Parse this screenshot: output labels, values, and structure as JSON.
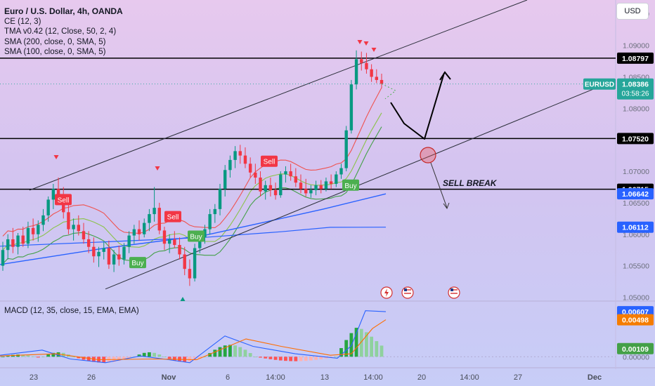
{
  "legend": {
    "title": "Euro / U.S. Dollar, 4h, OANDA",
    "lines": [
      "CE (12, 3)",
      "TMA v0.42 (12, Close, 50, 2, 4)",
      "SMA (200, close, 0, SMA, 5)",
      "SMA (100, close, 0, SMA, 5)"
    ]
  },
  "currency_button": "USD",
  "macd_legend": "MACD (12, 35, close, 15, EMA, EMA)",
  "chart_data": [
    {
      "type": "candlestick",
      "title": "Euro / U.S. Dollar, 4h, OANDA",
      "symbol": "EURUSD",
      "ylim": [
        1.0495,
        1.0972
      ],
      "y_ticks": [
        "1.09500",
        "1.09000",
        "1.08500",
        "1.08000",
        "1.07500",
        "1.07000",
        "1.06500",
        "1.06000",
        "1.05500",
        "1.05000"
      ],
      "x_tick_labels": [
        "23",
        "26",
        "Nov",
        "6",
        "14:00",
        "13",
        "14:00",
        "20",
        "14:00",
        "27",
        "Dec"
      ],
      "horizontal_levels": [
        {
          "label": "1.08797",
          "value": 1.08797
        },
        {
          "label": "1.07520",
          "value": 1.0752
        },
        {
          "label": "1.06715",
          "value": 1.06715
        }
      ],
      "price_tags": [
        {
          "label": "1.08386",
          "sub": "03:58:26",
          "value": 1.08386,
          "color": "#26a69a",
          "name": "EURUSD"
        },
        {
          "label": "1.06642",
          "value": 1.06642,
          "color": "#2962ff"
        },
        {
          "label": "1.06112",
          "value": 1.06112,
          "color": "#2962ff"
        }
      ],
      "signals": [
        {
          "label": "Sell",
          "date": "Oct 23",
          "price": 1.0655
        },
        {
          "label": "Sell",
          "date": "Oct 31",
          "price": 1.0628
        },
        {
          "label": "Buy",
          "date": "Oct 27",
          "price": 1.0555
        },
        {
          "label": "Buy",
          "date": "Nov 1",
          "price": 1.0597
        },
        {
          "label": "Sell",
          "date": "Nov 7",
          "price": 1.0716
        },
        {
          "label": "Buy",
          "date": "Nov 14",
          "price": 1.0678
        }
      ],
      "annotations": [
        {
          "text": "SELL BREAK"
        }
      ],
      "candles": [
        [
          1.055,
          1.0588,
          1.0542,
          1.0575
        ],
        [
          1.0575,
          1.06,
          1.056,
          1.0592
        ],
        [
          1.0592,
          1.061,
          1.057,
          1.058
        ],
        [
          1.058,
          1.0602,
          1.0568,
          1.0598
        ],
        [
          1.0598,
          1.0612,
          1.058,
          1.0585
        ],
        [
          1.0585,
          1.062,
          1.0578,
          1.061
        ],
        [
          1.061,
          1.0625,
          1.059,
          1.06
        ],
        [
          1.06,
          1.0622,
          1.0588,
          1.0615
        ],
        [
          1.0615,
          1.064,
          1.0605,
          1.063
        ],
        [
          1.063,
          1.066,
          1.062,
          1.0655
        ],
        [
          1.0655,
          1.068,
          1.064,
          1.0672
        ],
        [
          1.0672,
          1.069,
          1.065,
          1.066
        ],
        [
          1.066,
          1.0675,
          1.0625,
          1.0635
        ],
        [
          1.0635,
          1.0648,
          1.06,
          1.0608
        ],
        [
          1.0608,
          1.0625,
          1.059,
          1.0615
        ],
        [
          1.0615,
          1.063,
          1.0598,
          1.0605
        ],
        [
          1.0605,
          1.0618,
          1.0585,
          1.0592
        ],
        [
          1.0592,
          1.0605,
          1.057,
          1.058
        ],
        [
          1.058,
          1.0595,
          1.0555,
          1.0565
        ],
        [
          1.0565,
          1.058,
          1.0548,
          1.0572
        ],
        [
          1.0572,
          1.0588,
          1.056,
          1.0578
        ],
        [
          1.0578,
          1.059,
          1.0545,
          1.0552
        ],
        [
          1.0552,
          1.0575,
          1.054,
          1.0568
        ],
        [
          1.0568,
          1.0582,
          1.055,
          1.056
        ],
        [
          1.056,
          1.0586,
          1.0552,
          1.058
        ],
        [
          1.058,
          1.0605,
          1.057,
          1.0598
        ],
        [
          1.0598,
          1.0615,
          1.0585,
          1.0608
        ],
        [
          1.0608,
          1.0622,
          1.059,
          1.06
        ],
        [
          1.06,
          1.0625,
          1.0595,
          1.0618
        ],
        [
          1.0618,
          1.064,
          1.0605,
          1.0632
        ],
        [
          1.0632,
          1.0675,
          1.062,
          1.0642
        ],
        [
          1.0642,
          1.065,
          1.06,
          1.0606
        ],
        [
          1.0606,
          1.0612,
          1.0575,
          1.0585
        ],
        [
          1.0585,
          1.06,
          1.057,
          1.0592
        ],
        [
          1.0592,
          1.0605,
          1.0578,
          1.0583
        ],
        [
          1.0583,
          1.0595,
          1.056,
          1.0568
        ],
        [
          1.0568,
          1.058,
          1.0535,
          1.0545
        ],
        [
          1.0545,
          1.056,
          1.0518,
          1.053
        ],
        [
          1.053,
          1.0585,
          1.0525,
          1.0578
        ],
        [
          1.0578,
          1.06,
          1.057,
          1.0595
        ],
        [
          1.0595,
          1.0615,
          1.0585,
          1.0608
        ],
        [
          1.0608,
          1.064,
          1.06,
          1.0632
        ],
        [
          1.0632,
          1.0648,
          1.0618,
          1.064
        ],
        [
          1.064,
          1.068,
          1.063,
          1.0672
        ],
        [
          1.0672,
          1.071,
          1.066,
          1.0702
        ],
        [
          1.0702,
          1.0725,
          1.069,
          1.0718
        ],
        [
          1.0718,
          1.074,
          1.0705,
          1.0732
        ],
        [
          1.0732,
          1.0742,
          1.0712,
          1.0725
        ],
        [
          1.0725,
          1.0738,
          1.0705,
          1.0712
        ],
        [
          1.0712,
          1.0722,
          1.069,
          1.0698
        ],
        [
          1.0698,
          1.0712,
          1.068,
          1.069
        ],
        [
          1.069,
          1.07,
          1.066,
          1.0668
        ],
        [
          1.0668,
          1.0685,
          1.0655,
          1.0678
        ],
        [
          1.0678,
          1.069,
          1.066,
          1.067
        ],
        [
          1.067,
          1.0682,
          1.0655,
          1.0662
        ],
        [
          1.0662,
          1.07,
          1.0658,
          1.0695
        ],
        [
          1.0695,
          1.0708,
          1.0682,
          1.07
        ],
        [
          1.07,
          1.0712,
          1.0685,
          1.0692
        ],
        [
          1.0692,
          1.0705,
          1.0675,
          1.0682
        ],
        [
          1.0682,
          1.0695,
          1.0665,
          1.0672
        ],
        [
          1.0672,
          1.0688,
          1.066,
          1.0665
        ],
        [
          1.0665,
          1.0678,
          1.0658,
          1.067
        ],
        [
          1.067,
          1.0685,
          1.0662,
          1.0678
        ],
        [
          1.0678,
          1.0686,
          1.0665,
          1.0672
        ],
        [
          1.0672,
          1.069,
          1.0668,
          1.0684
        ],
        [
          1.0684,
          1.0695,
          1.0672,
          1.068
        ],
        [
          1.068,
          1.07,
          1.0675,
          1.0695
        ],
        [
          1.0695,
          1.0712,
          1.0688,
          1.0705
        ],
        [
          1.0705,
          1.0772,
          1.07,
          1.0765
        ],
        [
          1.0765,
          1.0845,
          1.076,
          1.0838
        ],
        [
          1.0838,
          1.0892,
          1.083,
          1.0878
        ],
        [
          1.0878,
          1.089,
          1.086,
          1.0872
        ],
        [
          1.0872,
          1.0888,
          1.0855,
          1.0862
        ],
        [
          1.0862,
          1.087,
          1.0842,
          1.085
        ],
        [
          1.085,
          1.0862,
          1.084,
          1.0845
        ],
        [
          1.0845,
          1.0855,
          1.0832,
          1.0839
        ]
      ]
    },
    {
      "type": "macd",
      "title": "MACD (12, 35, close, 15, EMA, EMA)",
      "ylim": [
        -0.0012,
        0.0074
      ],
      "y_ticks": [
        "0.00000"
      ],
      "value_tags": [
        {
          "label": "0.00607",
          "value": 0.00607,
          "color": "#2962ff"
        },
        {
          "label": "0.00498",
          "value": 0.00498,
          "color": "#f57c00"
        },
        {
          "label": "0.00109",
          "value": 0.00109,
          "color": "#43a047"
        }
      ]
    }
  ]
}
